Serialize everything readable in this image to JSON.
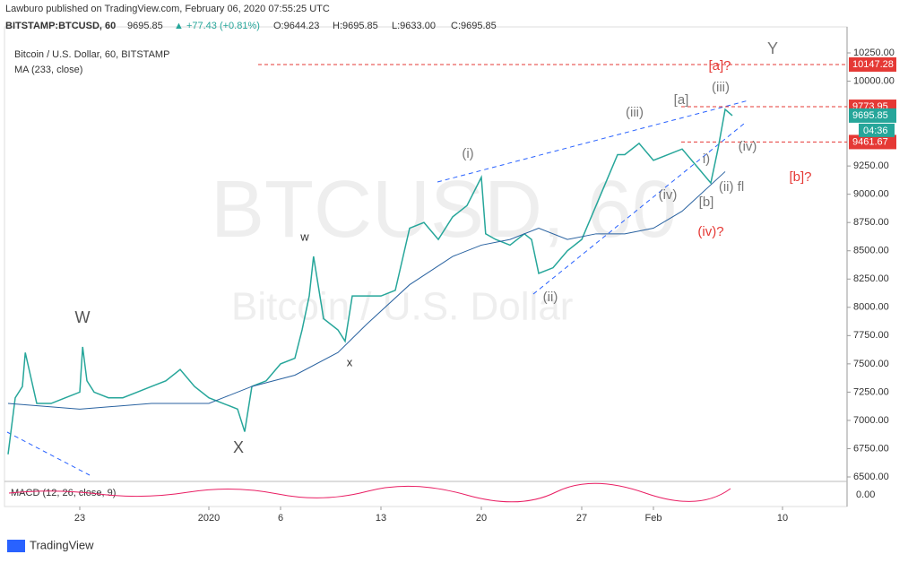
{
  "chart_data": {
    "type": "line",
    "header": "Lawburo published on TradingView.com, February 06, 2020 07:55:25 UTC",
    "ticker": "BITSTAMP:BTCUSD, 60",
    "last": "9695.85",
    "change": "▲ +77.43 (+0.81%)",
    "ohlc": [
      "O:9644.23",
      "H:9695.85",
      "L:9633.00",
      "C:9695.85"
    ],
    "legend_title": "Bitcoin / U.S. Dollar, 60, BITSTAMP",
    "watermark": "BTCUSD, 60",
    "watermark_sub": "Bitcoin / U.S. Dollar",
    "indicator": "MACD (12, 26, close, 9)",
    "indicator_tick": "0.00",
    "countdown": "04:36",
    "brand": "TradingView",
    "xlim": [
      -5.25,
      53.5
    ],
    "xticks": [
      {
        "value": 0,
        "label": "23"
      },
      {
        "value": 9,
        "label": "2020"
      },
      {
        "value": 14,
        "label": "6"
      },
      {
        "value": 21,
        "label": "13"
      },
      {
        "value": 28,
        "label": "20"
      },
      {
        "value": 35,
        "label": "27"
      },
      {
        "value": 40,
        "label": "Feb"
      },
      {
        "value": 49,
        "label": "10"
      }
    ],
    "ylim": [
      6500,
      10250
    ],
    "yticks": [
      {
        "value": 6500,
        "label": "6500.00"
      },
      {
        "value": 6750,
        "label": "6750.00"
      },
      {
        "value": 7000,
        "label": "7000.00"
      },
      {
        "value": 7250,
        "label": "7250.00"
      },
      {
        "value": 7500,
        "label": "7500.00"
      },
      {
        "value": 7750,
        "label": "7750.00"
      },
      {
        "value": 8000,
        "label": "8000.00"
      },
      {
        "value": 8250,
        "label": "8250.00"
      },
      {
        "value": 8500,
        "label": "8500.00"
      },
      {
        "value": 8750,
        "label": "8750.00"
      },
      {
        "value": 9000,
        "label": "9000.00"
      },
      {
        "value": 9250,
        "label": "9250.00"
      },
      {
        "value": 10000,
        "label": "10000.00"
      },
      {
        "value": 10250,
        "label": "10250.00"
      }
    ],
    "series": [
      {
        "name": "BTCUSD",
        "color": "#26a69a",
        "x": [
          -5,
          -4.5,
          -4,
          -3.8,
          -3,
          -2,
          -1,
          0,
          0.2,
          0.5,
          1,
          2,
          3,
          4,
          5,
          6,
          7,
          8,
          9,
          10,
          11,
          11.5,
          12,
          13,
          14,
          15,
          15.5,
          16,
          16.3,
          17,
          18,
          18.5,
          19,
          20,
          21,
          22,
          23,
          24,
          25,
          26,
          27,
          28,
          28.3,
          29,
          30,
          31,
          31.5,
          32,
          33,
          34,
          35,
          36,
          37,
          37.5,
          38,
          39,
          40,
          41,
          42,
          43,
          44,
          44.5,
          45,
          45.5
        ],
        "values": [
          6700,
          7200,
          7300,
          7600,
          7150,
          7150,
          7200,
          7250,
          7650,
          7350,
          7250,
          7200,
          7200,
          7250,
          7300,
          7350,
          7450,
          7300,
          7200,
          7150,
          7100,
          6900,
          7300,
          7350,
          7500,
          7550,
          7800,
          8100,
          8450,
          7900,
          7800,
          7700,
          8100,
          8100,
          8100,
          8150,
          8700,
          8750,
          8600,
          8800,
          8900,
          9150,
          8650,
          8600,
          8550,
          8650,
          8600,
          8300,
          8350,
          8500,
          8600,
          8900,
          9200,
          9350,
          9350,
          9450,
          9300,
          9350,
          9400,
          9250,
          9100,
          9400,
          9750,
          9695.85
        ]
      },
      {
        "name": "MA (233, close)",
        "color": "#2962a0",
        "x": [
          -5,
          0,
          5,
          9,
          10,
          12,
          15,
          18,
          20,
          23,
          26,
          28,
          30,
          32,
          34,
          36,
          38,
          40,
          42,
          45
        ],
        "values": [
          7150,
          7100,
          7150,
          7150,
          7200,
          7300,
          7400,
          7600,
          7850,
          8200,
          8450,
          8550,
          8600,
          8700,
          8600,
          8650,
          8650,
          8700,
          8850,
          9200
        ]
      }
    ],
    "levels": [
      {
        "value": 10147.28,
        "label": "10147.28"
      },
      {
        "value": 9773.95,
        "label": "9773.95"
      },
      {
        "value": 9461.67,
        "label": "9461.67"
      }
    ],
    "annotations": [
      "W",
      "X",
      "w",
      "x",
      "(i)",
      "(ii)",
      "(iii)",
      "[a]",
      "(iii)",
      "(iv)",
      "i)",
      "(iv)",
      "[b]",
      "(ii) fl",
      "(iv)?",
      "[b]?",
      "[a]?",
      "Y"
    ]
  }
}
